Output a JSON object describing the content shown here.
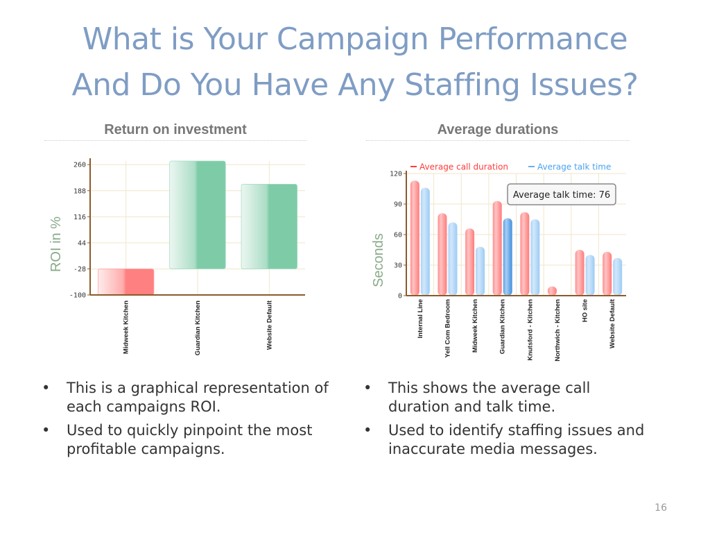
{
  "slide": {
    "title_line1": "What is Your Campaign Performance",
    "title_line2": "And Do You Have Any Staffing Issues?",
    "page_number": "16"
  },
  "left": {
    "header": "Return on investment",
    "bullets": [
      "This is a graphical representation of each campaigns ROI.",
      "Used to quickly pinpoint the most profitable campaigns."
    ]
  },
  "right": {
    "header": "Average durations",
    "bullets": [
      "This shows the average call duration and talk time.",
      "Used to identify staffing issues and inaccurate media messages."
    ]
  },
  "chart_data": [
    {
      "type": "bar",
      "title": "Return on investment",
      "ylabel": "ROI in %",
      "categories": [
        "Midweek Kitchen",
        "Guardian Kitchen",
        "Website Default"
      ],
      "values": [
        -100,
        270,
        206
      ],
      "ylim": [
        -100,
        270
      ],
      "yticks": [
        260,
        188,
        116,
        44,
        -28,
        -100
      ],
      "grid": true,
      "colors": [
        "#ff8080",
        "#7ecba8",
        "#7ecba8"
      ],
      "axis_color": "#8b5a2b"
    },
    {
      "type": "bar",
      "title": "Average durations",
      "ylabel": "Seconds",
      "categories": [
        "Internal Line",
        "Yell Com Bedroom",
        "Midweek Kitchen",
        "Guardian Kitchen",
        "Knutsford - Kitchen",
        "Northwich - Kitchen",
        "HO site",
        "Website Default"
      ],
      "series": [
        {
          "name": "Average call duration",
          "color": "#ff7b7b",
          "values": [
            113,
            81,
            66,
            93,
            82,
            9,
            45,
            43
          ]
        },
        {
          "name": "Average talk time",
          "color": "#9ccbf5",
          "values": [
            106,
            72,
            48,
            76,
            75,
            0,
            40,
            37
          ]
        }
      ],
      "ylim": [
        0,
        120
      ],
      "yticks": [
        120,
        90,
        60,
        30,
        0
      ],
      "grid": true,
      "legend": "top",
      "highlight": {
        "category": "Guardian Kitchen",
        "series": "Average talk time",
        "color": "#3f8fe0"
      },
      "tooltip": "Average talk time: 76",
      "axis_color": "#8b5a2b"
    }
  ]
}
